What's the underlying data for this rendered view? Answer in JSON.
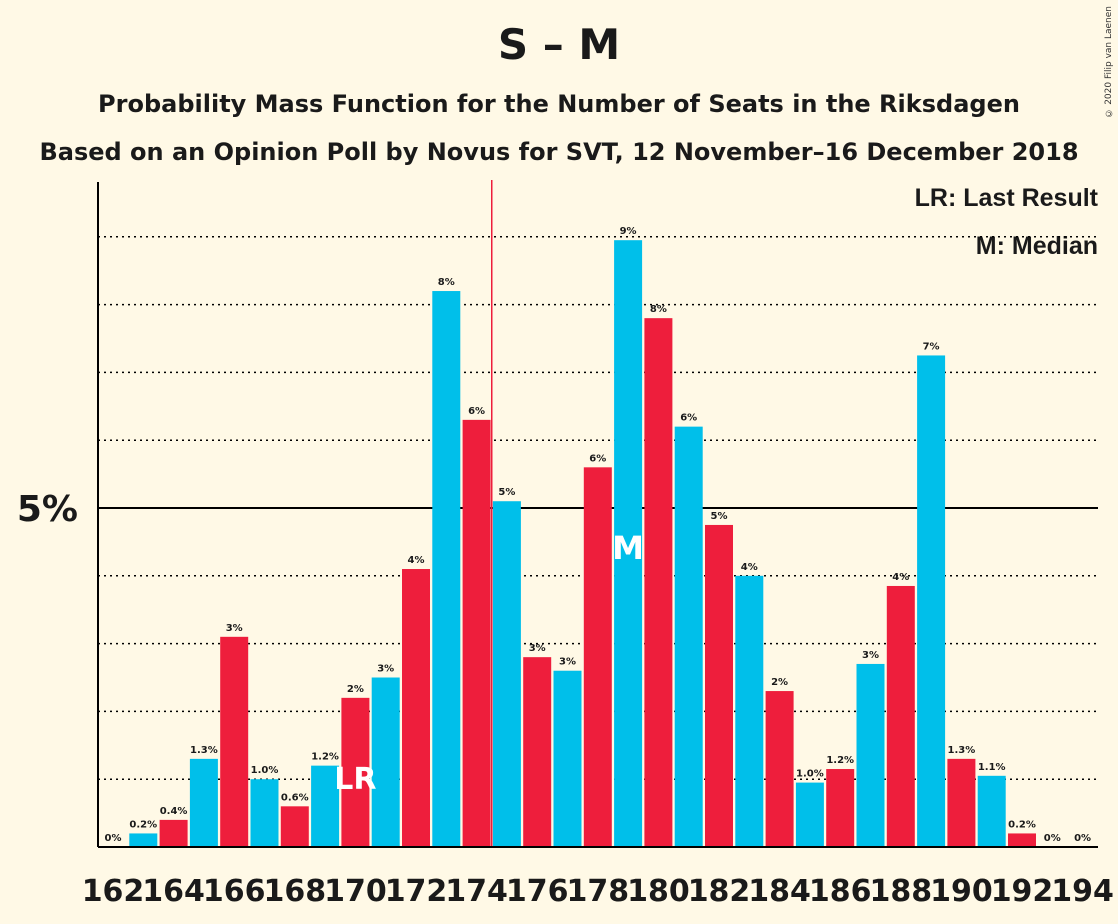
{
  "title": "S – M",
  "subtitle1": "Probability Mass Function for the Number of Seats in the Riksdagen",
  "subtitle2": "Based on an Opinion Poll by Novus for SVT, 12 November–16 December 2018",
  "copyright": "© 2020 Filip van Laenen",
  "legend": {
    "last_result": "LR: Last Result",
    "median": "M: Median"
  },
  "colors": {
    "blue": "#00BFEA",
    "red": "#EE1E3C",
    "background": "#FFF9E6"
  },
  "chart_data": {
    "type": "bar",
    "x": [
      162,
      163,
      164,
      165,
      166,
      167,
      168,
      169,
      170,
      171,
      172,
      173,
      174,
      175,
      176,
      177,
      178,
      179,
      180,
      181,
      182,
      183,
      184,
      185,
      186,
      187,
      188,
      189,
      190,
      191,
      192,
      193,
      194
    ],
    "values": [
      0,
      0.2,
      0.4,
      1.3,
      3.1,
      1.0,
      0.6,
      1.2,
      2.2,
      2.5,
      4.1,
      8.2,
      6.3,
      5.1,
      2.8,
      2.6,
      5.6,
      8.95,
      7.8,
      6.2,
      4.75,
      4.0,
      2.3,
      0.95,
      1.15,
      2.7,
      3.85,
      7.25,
      1.3,
      1.05,
      0.2,
      0,
      0
    ],
    "labels": [
      "0%",
      "0.2%",
      "0.4%",
      "1.3%",
      "3%",
      "1.0%",
      "0.6%",
      "1.2%",
      "2%",
      "3%",
      "4%",
      "8%",
      "6%",
      "5%",
      "3%",
      "3%",
      "6%",
      "9%",
      "8%",
      "6%",
      "5%",
      "4%",
      "2%",
      "1.0%",
      "1.2%",
      "3%",
      "4%",
      "7%",
      "1.3%",
      "1.1%",
      "0.2%",
      "0%",
      "0%"
    ],
    "tick_labels": [
      "162",
      "164",
      "166",
      "168",
      "170",
      "172",
      "174",
      "176",
      "178",
      "180",
      "182",
      "184",
      "186",
      "188",
      "190",
      "192",
      "194"
    ],
    "ytick_label": "5%",
    "ylim": [
      0,
      9.8
    ],
    "last_result_seat": 170,
    "last_result_marker": "LR",
    "median_seat": 179,
    "median_marker": "M",
    "majority_line_after_seat": 174,
    "grid": true
  }
}
